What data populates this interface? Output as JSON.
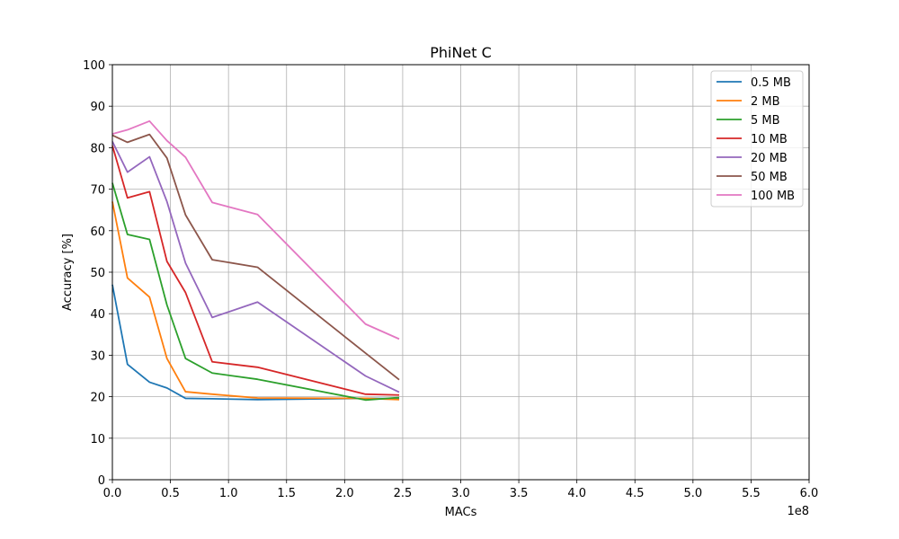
{
  "chart_data": {
    "type": "line",
    "title": "PhiNet C",
    "xlabel": "MACs",
    "ylabel": "Accuracy [%]",
    "x_offset_label": "1e8",
    "xlim": [
      0,
      6.0
    ],
    "ylim": [
      0,
      100
    ],
    "x_ticks": [
      "0.0",
      "0.5",
      "1.0",
      "1.5",
      "2.0",
      "2.5",
      "3.0",
      "3.5",
      "4.0",
      "4.5",
      "5.0",
      "5.5",
      "6.0"
    ],
    "y_ticks": [
      "0",
      "10",
      "20",
      "30",
      "40",
      "50",
      "60",
      "70",
      "80",
      "90",
      "100"
    ],
    "grid": true,
    "legend_position": "top-right",
    "colors": [
      "#1f77b4",
      "#ff7f0e",
      "#2ca02c",
      "#d62728",
      "#9467bd",
      "#8c564b",
      "#e377c2"
    ],
    "x": [
      0.0,
      0.13,
      0.32,
      0.47,
      0.63,
      0.86,
      1.25,
      2.18,
      2.47
    ],
    "series": [
      {
        "name": "0.5 MB",
        "values": [
          47.0,
          27.8,
          23.5,
          22.1,
          19.6,
          19.5,
          19.3,
          19.6,
          19.5
        ]
      },
      {
        "name": "2 MB",
        "values": [
          67.0,
          48.6,
          44.0,
          29.2,
          21.2,
          20.6,
          19.7,
          19.6,
          19.3
        ]
      },
      {
        "name": "5 MB",
        "values": [
          71.5,
          59.1,
          57.9,
          42.1,
          29.2,
          25.7,
          24.2,
          19.2,
          19.8
        ]
      },
      {
        "name": "10 MB",
        "values": [
          80.5,
          67.9,
          69.4,
          52.6,
          45.1,
          28.4,
          27.1,
          20.6,
          20.4
        ]
      },
      {
        "name": "20 MB",
        "values": [
          81.5,
          74.1,
          77.8,
          67.0,
          52.2,
          39.1,
          42.8,
          25.0,
          21.1
        ]
      },
      {
        "name": "50 MB",
        "values": [
          83.0,
          81.3,
          83.2,
          77.5,
          63.8,
          53.0,
          51.2,
          30.5,
          24.1
        ]
      },
      {
        "name": "100 MB",
        "values": [
          83.3,
          84.3,
          86.4,
          81.7,
          77.7,
          66.8,
          63.9,
          37.5,
          33.9
        ]
      }
    ]
  }
}
